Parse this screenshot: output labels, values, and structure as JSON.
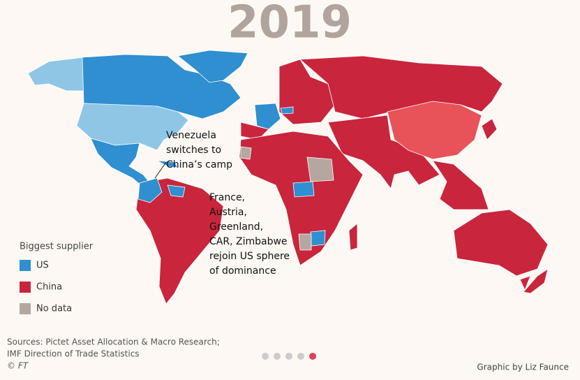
{
  "header": {
    "title": "2019"
  },
  "annotations": [
    {
      "lines": [
        "Venezuela",
        "switches to",
        "China’s camp"
      ]
    },
    {
      "lines": [
        "France,",
        "Austria,",
        "Greenland,",
        "CAR, Zimbabwe",
        "rejoin US sphere",
        "of dominance"
      ]
    }
  ],
  "legend": {
    "title": "Biggest supplier",
    "items": [
      {
        "label": "US",
        "color": "#2f8fd0"
      },
      {
        "label": "China",
        "color": "#c9253c"
      },
      {
        "label": "No data",
        "color": "#b5a7a0"
      }
    ]
  },
  "footer": {
    "sources": [
      "Sources: Pictet Asset Allocation & Macro Research;",
      "IMF Direction of Trade Statistics",
      "© FT"
    ],
    "credit": "Graphic by Liz Faunce"
  }
}
